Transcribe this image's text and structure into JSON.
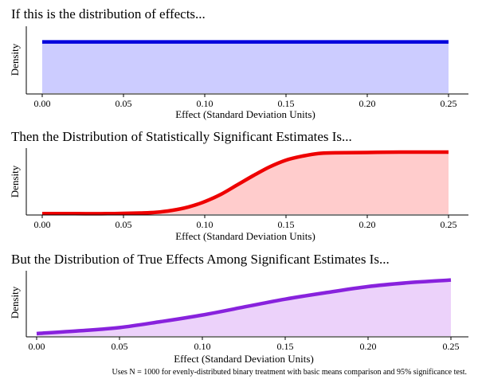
{
  "chart_data": [
    {
      "type": "area",
      "title": "If this is the distribution of effects...",
      "xlabel": "Effect (Standard Deviation Units)",
      "ylabel": "Density",
      "xlim": [
        0,
        0.25
      ],
      "ylim": [
        0,
        1.3
      ],
      "xticks": [
        "0.00",
        "0.05",
        "0.10",
        "0.15",
        "0.20",
        "0.25"
      ],
      "grid": false,
      "color": "#0000dd",
      "fill": "#ccccff",
      "x": [
        0.0,
        0.05,
        0.1,
        0.15,
        0.2,
        0.25
      ],
      "y": [
        1.0,
        1.0,
        1.0,
        1.0,
        1.0,
        1.0
      ]
    },
    {
      "type": "area",
      "title": "Then the Distribution of Statistically Significant Estimates Is...",
      "xlabel": "Effect (Standard Deviation Units)",
      "ylabel": "Density",
      "xlim": [
        0,
        0.25
      ],
      "ylim": [
        0,
        1.0
      ],
      "xticks": [
        "0.00",
        "0.05",
        "0.10",
        "0.15",
        "0.20",
        "0.25"
      ],
      "grid": false,
      "color": "#ee0000",
      "fill": "#ffcccc",
      "x": [
        0.0,
        0.02,
        0.04,
        0.06,
        0.07,
        0.08,
        0.09,
        0.1,
        0.11,
        0.12,
        0.13,
        0.14,
        0.15,
        0.16,
        0.17,
        0.18,
        0.2,
        0.22,
        0.25
      ],
      "y": [
        0.02,
        0.02,
        0.02,
        0.03,
        0.04,
        0.07,
        0.12,
        0.2,
        0.31,
        0.45,
        0.59,
        0.72,
        0.82,
        0.88,
        0.92,
        0.93,
        0.935,
        0.94,
        0.94
      ]
    },
    {
      "type": "area",
      "title": "But the Distribution of True Effects Among Significant Estimates Is...",
      "xlabel": "Effect (Standard Deviation Units)",
      "ylabel": "Density",
      "xlim": [
        0,
        0.25
      ],
      "ylim": [
        0,
        1.0
      ],
      "xticks": [
        "0.00",
        "0.05",
        "0.10",
        "0.15",
        "0.20",
        "0.25"
      ],
      "grid": false,
      "color": "#8822dd",
      "fill": "#ecd2fa",
      "x": [
        0.0,
        0.025,
        0.05,
        0.075,
        0.1,
        0.125,
        0.15,
        0.175,
        0.2,
        0.225,
        0.25
      ],
      "y": [
        0.05,
        0.09,
        0.14,
        0.23,
        0.33,
        0.45,
        0.57,
        0.67,
        0.76,
        0.82,
        0.86
      ]
    }
  ],
  "footnote": "Uses N = 1000 for evenly-distributed binary treatment with basic means comparison and 95% significance test."
}
